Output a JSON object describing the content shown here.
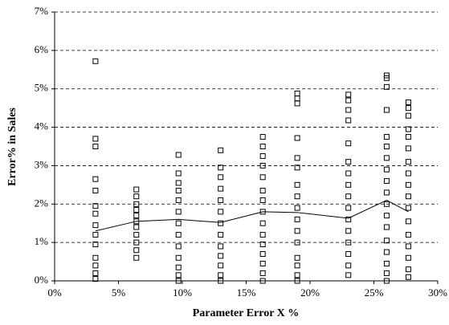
{
  "chart_data": {
    "type": "scatter",
    "xlabel": "Parameter Error X %",
    "ylabel": "Error% in Sales",
    "xlim": [
      0,
      30
    ],
    "xticks": [
      {
        "value": 0,
        "label": "0%"
      },
      {
        "value": 5,
        "label": "5%"
      },
      {
        "value": 10,
        "label": "10%"
      },
      {
        "value": 15,
        "label": "15%"
      },
      {
        "value": 20,
        "label": "20%"
      },
      {
        "value": 25,
        "label": "25%"
      },
      {
        "value": 30,
        "label": "30%"
      }
    ],
    "ylim": [
      0,
      7
    ],
    "yticks": [
      {
        "value": 0,
        "label": "0%"
      },
      {
        "value": 1,
        "label": "1%"
      },
      {
        "value": 2,
        "label": "2%"
      },
      {
        "value": 3,
        "label": "3%"
      },
      {
        "value": 4,
        "label": "4%"
      },
      {
        "value": 5,
        "label": "5%"
      },
      {
        "value": 6,
        "label": "6%"
      },
      {
        "value": 7,
        "label": "7%"
      }
    ],
    "grid": true,
    "series": [
      {
        "type": "scatter",
        "color": "#000000",
        "x": [
          3.2,
          3.2,
          3.2,
          3.2,
          3.2,
          3.2,
          3.2,
          3.2,
          3.2,
          3.2,
          3.2,
          3.2,
          3.2,
          3.2,
          6.4,
          6.4,
          6.4,
          6.4,
          6.4,
          6.4,
          6.4,
          6.4,
          6.4,
          6.4,
          6.4,
          9.7,
          9.7,
          9.7,
          9.7,
          9.7,
          9.7,
          9.7,
          9.7,
          9.7,
          9.7,
          9.7,
          9.7,
          9.7,
          13,
          13,
          13,
          13,
          13,
          13,
          13,
          13,
          13,
          13,
          13,
          13,
          13,
          16.3,
          16.3,
          16.3,
          16.3,
          16.3,
          16.3,
          16.3,
          16.3,
          16.3,
          16.3,
          16.3,
          16.3,
          16.3,
          16.3,
          16.3,
          19,
          19,
          19,
          19,
          19,
          19,
          19,
          19,
          19,
          19,
          19,
          19,
          19,
          19,
          19,
          19,
          23,
          23,
          23,
          23,
          23,
          23,
          23,
          23,
          23,
          23,
          23,
          23,
          23,
          23,
          23,
          23,
          26,
          26,
          26,
          26,
          26,
          26,
          26,
          26,
          26,
          26,
          26,
          26,
          26,
          26,
          26,
          26,
          26,
          26,
          27.7,
          27.7,
          27.7,
          27.7,
          27.7,
          27.7,
          27.7,
          27.7,
          27.7,
          27.7,
          27.7,
          27.7,
          27.7,
          27.7,
          27.7,
          27.7,
          27.7
        ],
        "values": [
          5.72,
          3.7,
          3.5,
          2.65,
          2.35,
          1.95,
          1.75,
          1.45,
          1.2,
          0.95,
          0.6,
          0.4,
          0.2,
          0.05,
          2.38,
          2.2,
          2.0,
          1.85,
          1.7,
          1.55,
          1.4,
          1.2,
          1.0,
          0.8,
          0.6,
          3.28,
          2.8,
          2.55,
          2.35,
          2.1,
          1.8,
          1.5,
          1.2,
          0.9,
          0.6,
          0.35,
          0.15,
          0.0,
          3.4,
          2.95,
          2.7,
          2.4,
          2.1,
          1.8,
          1.5,
          1.2,
          0.9,
          0.65,
          0.4,
          0.15,
          0.0,
          3.75,
          3.5,
          3.25,
          3.0,
          2.7,
          2.35,
          2.1,
          1.8,
          1.5,
          1.2,
          0.95,
          0.7,
          0.45,
          0.2,
          0.0,
          4.88,
          4.75,
          4.62,
          3.72,
          3.2,
          2.95,
          2.5,
          2.2,
          1.9,
          1.6,
          1.3,
          1.0,
          0.6,
          0.4,
          0.15,
          0.0,
          4.85,
          4.7,
          4.45,
          4.18,
          3.58,
          3.1,
          2.8,
          2.5,
          2.2,
          1.9,
          1.6,
          1.3,
          1.0,
          0.7,
          0.4,
          0.15,
          5.35,
          5.28,
          5.05,
          4.45,
          3.75,
          3.5,
          3.2,
          2.9,
          2.6,
          2.3,
          2.0,
          1.7,
          1.4,
          1.05,
          0.75,
          0.45,
          0.2,
          0.0,
          4.65,
          4.5,
          4.3,
          3.95,
          3.75,
          3.45,
          3.1,
          2.8,
          2.5,
          2.2,
          1.9,
          1.55,
          1.2,
          0.9,
          0.6,
          0.3,
          0.1
        ]
      },
      {
        "type": "line",
        "color": "#000000",
        "x": [
          3.2,
          6.4,
          9.7,
          13,
          16.3,
          19,
          23,
          26,
          27.7
        ],
        "values": [
          1.3,
          1.55,
          1.6,
          1.52,
          1.8,
          1.78,
          1.63,
          2.1,
          1.8
        ]
      }
    ]
  }
}
